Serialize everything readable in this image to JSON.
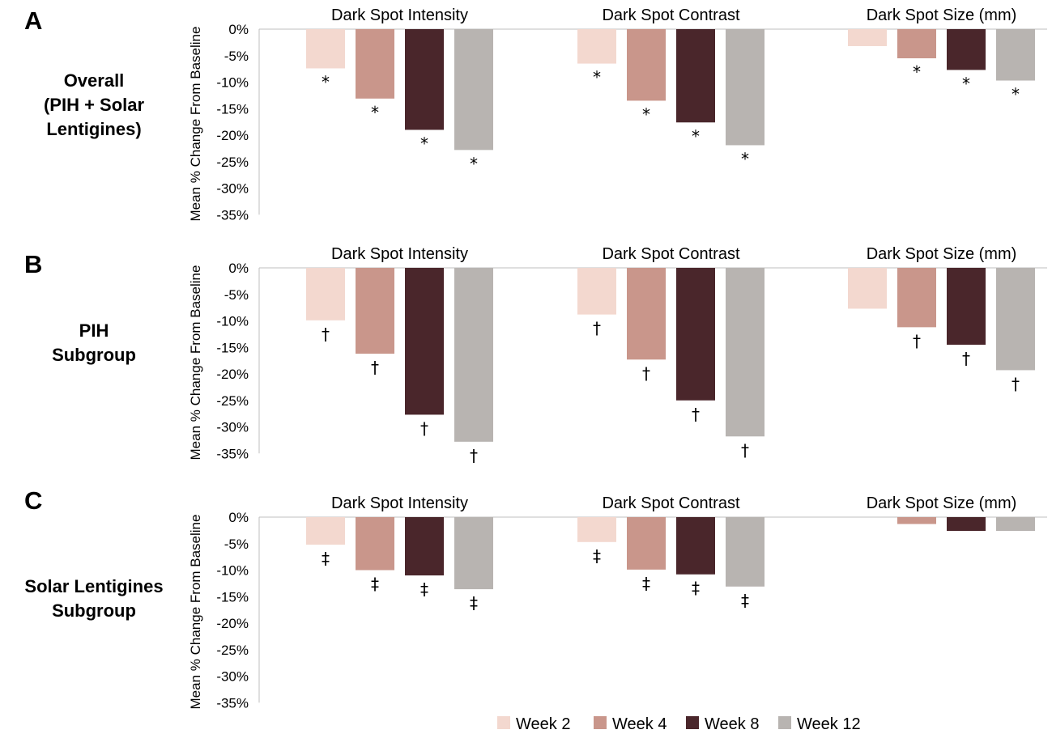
{
  "chart_data": {
    "type": "bar",
    "ylabel": "Mean % Change From Baseline",
    "ylim": [
      -35,
      0
    ],
    "yticks": [
      "0%",
      "-5%",
      "-10%",
      "-15%",
      "-20%",
      "-25%",
      "-30%",
      "-35%"
    ],
    "series_names": [
      "Week 2",
      "Week 4",
      "Week 8",
      "Week 12"
    ],
    "colors": [
      "#f3d8cf",
      "#c9968b",
      "#4a262b",
      "#b8b4b1"
    ],
    "panels": [
      {
        "letter": "A",
        "row_label": [
          "Overall",
          "(PIH + Solar",
          "Lentigines)"
        ],
        "groups": [
          {
            "title": "Dark Spot Intensity",
            "values": [
              -7.4,
              -13.1,
              -19.0,
              -22.8
            ],
            "markers": [
              "*",
              "*",
              "*",
              "*"
            ]
          },
          {
            "title": "Dark Spot Contrast",
            "values": [
              -6.5,
              -13.5,
              -17.6,
              -21.9
            ],
            "markers": [
              "*",
              "*",
              "*",
              "*"
            ]
          },
          {
            "title": "Dark Spot Size (mm)",
            "values": [
              -3.2,
              -5.5,
              -7.7,
              -9.7
            ],
            "markers": [
              "",
              "*",
              "*",
              "*"
            ]
          }
        ]
      },
      {
        "letter": "B",
        "row_label": [
          "PIH",
          "Subgroup"
        ],
        "groups": [
          {
            "title": "Dark Spot Intensity",
            "values": [
              -9.9,
              -16.2,
              -27.7,
              -32.8
            ],
            "markers": [
              "†",
              "†",
              "†",
              "†"
            ]
          },
          {
            "title": "Dark Spot Contrast",
            "values": [
              -8.8,
              -17.3,
              -25.0,
              -31.8
            ],
            "markers": [
              "†",
              "†",
              "†",
              "†"
            ]
          },
          {
            "title": "Dark Spot Size (mm)",
            "values": [
              -7.7,
              -11.2,
              -14.5,
              -19.3
            ],
            "markers": [
              "",
              "†",
              "†",
              "†"
            ]
          }
        ]
      },
      {
        "letter": "C",
        "row_label": [
          "Solar Lentigines",
          "Subgroup"
        ],
        "groups": [
          {
            "title": "Dark Spot Intensity",
            "values": [
              -5.2,
              -10.0,
              -11.0,
              -13.6
            ],
            "markers": [
              "‡",
              "‡",
              "‡",
              "‡"
            ]
          },
          {
            "title": "Dark Spot Contrast",
            "values": [
              -4.7,
              -9.9,
              -10.8,
              -13.1
            ],
            "markers": [
              "‡",
              "‡",
              "‡",
              "‡"
            ]
          },
          {
            "title": "Dark Spot Size (mm)",
            "values": [
              0,
              -1.3,
              -2.6,
              -2.6
            ],
            "markers": [
              "",
              "",
              "",
              ""
            ]
          }
        ]
      }
    ],
    "legend": [
      "Week 2",
      "Week 4",
      "Week 8",
      "Week 12"
    ],
    "legend_position": "bottom"
  }
}
